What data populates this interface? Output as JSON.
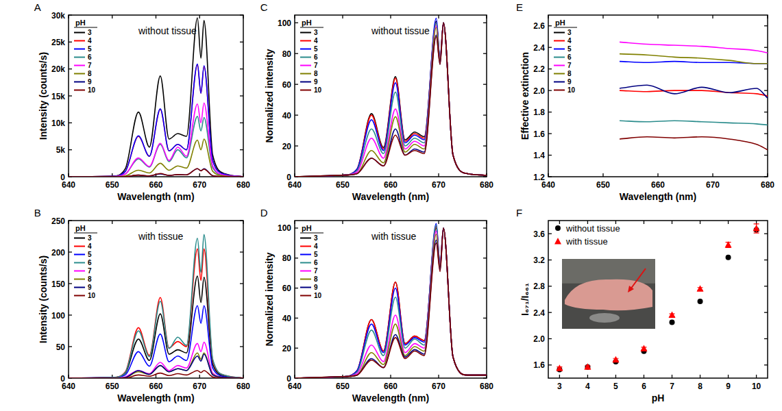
{
  "chart_data": [
    {
      "panel": "A",
      "type": "line",
      "annotations": [
        "without tissue"
      ],
      "x_label": "Wavelength (nm)",
      "y_label": "Intensity (counts/s)",
      "xlim": [
        640,
        680
      ],
      "xticks": [
        640,
        650,
        660,
        670,
        680
      ],
      "ylim": [
        0,
        30000
      ],
      "yticks": [
        0,
        {
          "value": 5000,
          "label": "5k"
        },
        {
          "value": 10000,
          "label": "10k"
        },
        {
          "value": 15000,
          "label": "15k"
        },
        {
          "value": 20000,
          "label": "20k"
        },
        {
          "value": 25000,
          "label": "25k"
        },
        {
          "value": 30000,
          "label": "30k"
        }
      ],
      "grid": false,
      "legend": "upper left",
      "legend_title": "pH",
      "x": [
        640,
        650,
        653,
        656,
        658.5,
        661,
        663,
        665,
        667,
        669.5,
        670.3,
        671,
        673,
        676,
        680
      ],
      "series": [
        {
          "name": "3",
          "color": "#000000",
          "values": [
            0,
            100,
            1500,
            12000,
            5500,
            18700,
            7000,
            8000,
            7500,
            29500,
            22000,
            29000,
            4000,
            500,
            0
          ]
        },
        {
          "name": "4",
          "color": "#ff0000",
          "values": [
            0,
            80,
            1000,
            7500,
            3800,
            12500,
            4800,
            6000,
            5000,
            20800,
            15500,
            20500,
            3000,
            400,
            0
          ]
        },
        {
          "name": "5",
          "color": "#0000ff",
          "values": [
            0,
            80,
            1000,
            7600,
            3800,
            12600,
            4800,
            6000,
            5000,
            20900,
            15500,
            20600,
            3000,
            400,
            0
          ]
        },
        {
          "name": "6",
          "color": "#2a8c8c",
          "values": [
            0,
            40,
            500,
            3300,
            1800,
            6000,
            2800,
            5000,
            3500,
            11200,
            8500,
            11000,
            1700,
            200,
            0
          ]
        },
        {
          "name": "7",
          "color": "#ff00ff",
          "values": [
            0,
            40,
            500,
            3500,
            1900,
            6200,
            3000,
            5500,
            3800,
            13500,
            10000,
            13700,
            2000,
            250,
            0
          ]
        },
        {
          "name": "8",
          "color": "#808000",
          "values": [
            0,
            10,
            150,
            1200,
            700,
            2500,
            1200,
            2000,
            1600,
            6800,
            5000,
            7000,
            1000,
            120,
            0
          ]
        },
        {
          "name": "9",
          "color": "#000080",
          "values": [
            0,
            0,
            30,
            300,
            150,
            500,
            250,
            400,
            350,
            1500,
            1100,
            1500,
            200,
            30,
            0
          ]
        },
        {
          "name": "10",
          "color": "#800000",
          "values": [
            0,
            0,
            30,
            300,
            150,
            600,
            250,
            400,
            350,
            1500,
            1100,
            1400,
            200,
            30,
            0
          ]
        }
      ]
    },
    {
      "panel": "B",
      "type": "line",
      "annotations": [
        "with tissue"
      ],
      "x_label": "Wavelength (nm)",
      "y_label": "Intensity (counts/s)",
      "xlim": [
        640,
        680
      ],
      "xticks": [
        640,
        650,
        660,
        670,
        680
      ],
      "ylim": [
        0,
        250
      ],
      "yticks": [
        0,
        50,
        100,
        150,
        200,
        250
      ],
      "grid": false,
      "legend": "upper left",
      "legend_title": "pH",
      "x": [
        640,
        650,
        653,
        656,
        658.5,
        661,
        663,
        665,
        667,
        669.5,
        670.3,
        671,
        673,
        676,
        680
      ],
      "series": [
        {
          "name": "3",
          "color": "#000000",
          "values": [
            0,
            1,
            8,
            62,
            28,
            102,
            38,
            45,
            40,
            162,
            120,
            160,
            22,
            3,
            0
          ]
        },
        {
          "name": "4",
          "color": "#ff0000",
          "values": [
            0,
            1,
            10,
            80,
            36,
            128,
            48,
            58,
            50,
            205,
            155,
            205,
            28,
            4,
            0
          ]
        },
        {
          "name": "5",
          "color": "#0000ff",
          "values": [
            0,
            1,
            5,
            42,
            19,
            70,
            26,
            35,
            28,
            115,
            87,
            115,
            16,
            2,
            0
          ]
        },
        {
          "name": "6",
          "color": "#2a8c8c",
          "values": [
            0,
            1,
            9,
            75,
            34,
            122,
            47,
            65,
            52,
            222,
            168,
            228,
            30,
            4,
            0
          ]
        },
        {
          "name": "7",
          "color": "#ff00ff",
          "values": [
            0,
            0,
            2,
            12,
            7,
            25,
            12,
            20,
            16,
            55,
            42,
            57,
            8,
            1,
            0
          ]
        },
        {
          "name": "8",
          "color": "#808000",
          "values": [
            0,
            0,
            1,
            10,
            6,
            20,
            10,
            15,
            12,
            40,
            30,
            40,
            6,
            1,
            0
          ]
        },
        {
          "name": "9",
          "color": "#000080",
          "values": [
            0,
            0,
            1,
            12,
            6,
            20,
            10,
            15,
            12,
            35,
            27,
            38,
            5,
            1,
            0
          ]
        },
        {
          "name": "10",
          "color": "#800000",
          "values": [
            0,
            0,
            0,
            5,
            3,
            8,
            4,
            7,
            5,
            12,
            9,
            12,
            2,
            0,
            0
          ]
        }
      ]
    },
    {
      "panel": "C",
      "type": "line",
      "annotations": [
        "without tissue"
      ],
      "x_label": "Wavelength (nm)",
      "y_label": "Normalized intensity",
      "xlim": [
        640,
        680
      ],
      "xticks": [
        640,
        650,
        660,
        670,
        680
      ],
      "ylim": [
        0,
        105
      ],
      "yticks": [
        0,
        20,
        40,
        60,
        80,
        100
      ],
      "grid": false,
      "legend": "upper left",
      "legend_title": "pH",
      "x": [
        640,
        650,
        653,
        656,
        658.5,
        661,
        663,
        665,
        667,
        669.5,
        670.3,
        671,
        673,
        676,
        680
      ],
      "series": [
        {
          "name": "3",
          "color": "#000000",
          "values": [
            0,
            1,
            5,
            41,
            19,
            65,
            24,
            29,
            26,
            101,
            76,
            100,
            14,
            2,
            1
          ]
        },
        {
          "name": "4",
          "color": "#ff0000",
          "values": [
            0,
            1,
            5,
            40,
            18,
            64,
            23,
            28,
            25,
            100,
            76,
            100,
            14,
            2,
            1
          ]
        },
        {
          "name": "5",
          "color": "#0000ff",
          "values": [
            0,
            1,
            5,
            37,
            17,
            61,
            22,
            27,
            24,
            103,
            77,
            100,
            14,
            2,
            1
          ]
        },
        {
          "name": "6",
          "color": "#2a8c8c",
          "values": [
            0,
            1,
            4,
            31,
            15,
            55,
            20,
            25,
            22,
            100,
            76,
            100,
            14,
            2,
            1
          ]
        },
        {
          "name": "7",
          "color": "#ff00ff",
          "values": [
            0,
            1,
            3,
            25,
            12,
            44,
            18,
            23,
            20,
            98,
            75,
            100,
            14,
            2,
            1
          ]
        },
        {
          "name": "8",
          "color": "#808000",
          "values": [
            0,
            1,
            2,
            17,
            9,
            39,
            16,
            21,
            18,
            97,
            75,
            100,
            14,
            2,
            1
          ]
        },
        {
          "name": "9",
          "color": "#000080",
          "values": [
            0,
            1,
            2,
            12,
            7,
            31,
            14,
            18,
            16,
            92,
            73,
            100,
            14,
            2,
            1
          ]
        },
        {
          "name": "10",
          "color": "#800000",
          "values": [
            0,
            1,
            2,
            12,
            7,
            27,
            14,
            17,
            15,
            91,
            73,
            100,
            14,
            2,
            1
          ]
        }
      ]
    },
    {
      "panel": "D",
      "type": "line",
      "annotations": [
        "with tissue"
      ],
      "x_label": "Wavelength (nm)",
      "y_label": "Normalized intensity",
      "xlim": [
        640,
        680
      ],
      "xticks": [
        640,
        650,
        660,
        670,
        680
      ],
      "ylim": [
        0,
        105
      ],
      "yticks": [
        0,
        20,
        40,
        60,
        80,
        100
      ],
      "grid": false,
      "legend": "upper left",
      "legend_title": "pH",
      "x": [
        640,
        650,
        653,
        656,
        658.5,
        661,
        663,
        665,
        667,
        669.5,
        670.3,
        671,
        673,
        676,
        680
      ],
      "series": [
        {
          "name": "3",
          "color": "#000000",
          "values": [
            0,
            1,
            5,
            39,
            18,
            64,
            23,
            28,
            25,
            100,
            74,
            100,
            14,
            2,
            2
          ]
        },
        {
          "name": "4",
          "color": "#ff0000",
          "values": [
            0,
            1,
            5,
            39,
            18,
            64,
            23,
            28,
            25,
            101,
            75,
            100,
            14,
            2,
            2
          ]
        },
        {
          "name": "5",
          "color": "#0000ff",
          "values": [
            0,
            1,
            5,
            36,
            17,
            60,
            22,
            27,
            24,
            103,
            76,
            100,
            14,
            2,
            2
          ]
        },
        {
          "name": "6",
          "color": "#2a8c8c",
          "values": [
            0,
            1,
            4,
            32,
            15,
            54,
            20,
            26,
            22,
            102,
            76,
            100,
            14,
            2,
            2
          ]
        },
        {
          "name": "7",
          "color": "#ff00ff",
          "values": [
            0,
            1,
            3,
            22,
            11,
            42,
            17,
            23,
            20,
            98,
            75,
            100,
            14,
            2,
            2
          ]
        },
        {
          "name": "8",
          "color": "#808000",
          "values": [
            0,
            1,
            2,
            17,
            9,
            36,
            15,
            21,
            18,
            96,
            74,
            100,
            14,
            2,
            2
          ]
        },
        {
          "name": "9",
          "color": "#000080",
          "values": [
            0,
            1,
            2,
            13,
            7,
            29,
            14,
            19,
            16,
            92,
            72,
            100,
            14,
            2,
            2
          ]
        },
        {
          "name": "10",
          "color": "#800000",
          "values": [
            0,
            1,
            2,
            12,
            7,
            27,
            13,
            18,
            15,
            90,
            71,
            100,
            14,
            2,
            2
          ]
        }
      ]
    },
    {
      "panel": "E",
      "type": "line",
      "x_label": "Wavelength (nm)",
      "y_label": "Effective extinction",
      "xlim": [
        640,
        680
      ],
      "xticks": [
        640,
        650,
        660,
        670,
        680
      ],
      "ylim": [
        1.2,
        2.7
      ],
      "yticks": [
        1.2,
        1.4,
        1.6,
        1.8,
        {
          "value": 2,
          "label": "2.0"
        },
        2.2,
        2.4,
        2.6
      ],
      "grid": false,
      "legend": "upper left",
      "legend_title": "pH",
      "x": [
        653,
        658,
        663,
        668,
        673,
        678,
        680
      ],
      "series": [
        {
          "name": "3",
          "color": "#000000",
          "values": [
            null,
            null,
            null,
            null,
            null,
            null,
            null
          ]
        },
        {
          "name": "4",
          "color": "#ff0000",
          "values": [
            2.0,
            1.99,
            2.0,
            2.0,
            1.98,
            1.97,
            1.95
          ]
        },
        {
          "name": "5",
          "color": "#0000ff",
          "values": [
            2.27,
            2.26,
            2.27,
            2.26,
            2.26,
            2.25,
            2.25
          ]
        },
        {
          "name": "6",
          "color": "#2a8c8c",
          "values": [
            1.72,
            1.71,
            1.72,
            1.71,
            1.7,
            1.69,
            1.68
          ]
        },
        {
          "name": "7",
          "color": "#ff00ff",
          "values": [
            2.45,
            2.43,
            2.42,
            2.41,
            2.39,
            2.37,
            2.35
          ]
        },
        {
          "name": "8",
          "color": "#808000",
          "values": [
            2.34,
            2.33,
            2.31,
            2.3,
            2.28,
            2.25,
            2.25
          ]
        },
        {
          "name": "9",
          "color": "#000080",
          "values": [
            2.02,
            2.05,
            1.97,
            2.03,
            1.98,
            2.02,
            1.93
          ]
        },
        {
          "name": "10",
          "color": "#800000",
          "values": [
            1.55,
            1.57,
            1.56,
            1.57,
            1.55,
            1.5,
            1.45
          ]
        }
      ]
    },
    {
      "panel": "F",
      "type": "scatter",
      "x_label": "pH",
      "y_label": "I₆₇₁/I₆₆₁",
      "xlim": [
        2.6,
        10.4
      ],
      "xticks": [
        3,
        4,
        5,
        6,
        7,
        8,
        9,
        10
      ],
      "ylim": [
        1.4,
        3.8
      ],
      "yticks": [
        1.6,
        {
          "value": 2,
          "label": "2.0"
        },
        2.4,
        2.8,
        3.2,
        3.6
      ],
      "grid": false,
      "legend": "upper left",
      "x": [
        3,
        4,
        5,
        6,
        7,
        8,
        9,
        10
      ],
      "series": [
        {
          "name": "without tissue",
          "color": "#000000",
          "marker": "circle",
          "values": [
            1.53,
            1.57,
            1.65,
            1.81,
            2.25,
            2.57,
            3.24,
            3.66
          ]
        },
        {
          "name": "with tissue",
          "color": "#ff0000",
          "marker": "triangle",
          "values": [
            1.55,
            1.57,
            1.68,
            1.85,
            2.36,
            2.76,
            3.43,
            3.68
          ],
          "errors": [
            0.02,
            0.02,
            0.02,
            0.02,
            0.02,
            0.02,
            0.04,
            0.07
          ]
        }
      ]
    }
  ]
}
